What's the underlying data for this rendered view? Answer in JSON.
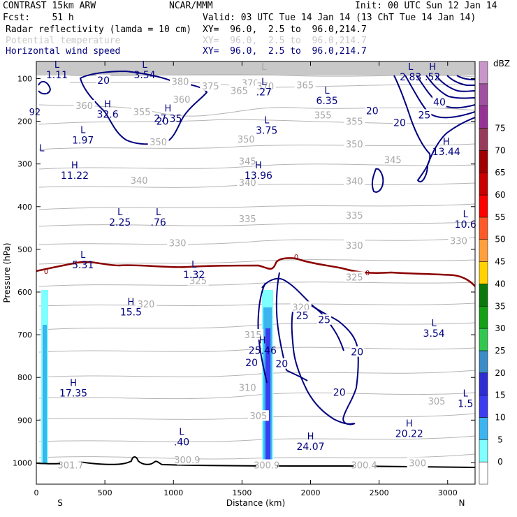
{
  "header": {
    "left_line1": "CONTRAST 15km ARW",
    "center_line1": "NCAR/MMM",
    "right_line1": "Init: 00 UTC Sun 12 Jan 14",
    "left_line2": "Fcst:    51 h",
    "right_line2": "Valid: 03 UTC Tue 14 Jan 14 (13 ChT Tue 14 Jan 14)",
    "fields": [
      {
        "name": "Radar reflectivity (lamda = 10 cm)",
        "xy": "XY=  96.0,  2.5 to  96.0,214.7",
        "color": "#000000"
      },
      {
        "name": "Potential temperature",
        "xy": "XY=  96.0,  2.5 to  96.0,214.7",
        "color": "#c8c8c8"
      },
      {
        "name": "Horizontal wind speed",
        "xy": "XY=  96.0,  2.5 to  96.0,214.7",
        "color": "#000080"
      }
    ]
  },
  "colors": {
    "theta": "#b4b4b4",
    "wind": "#000080",
    "freezing": "#8b0000",
    "terrain": "#000000"
  },
  "chart_data": {
    "type": "cross-section",
    "xlabel": "Distance (km)",
    "ylabel": "Pressure (hPa)",
    "xlim": [
      0,
      3200
    ],
    "ylim": [
      1050,
      60
    ],
    "x_ticks": [
      0,
      500,
      1000,
      1500,
      2000,
      2500,
      3000
    ],
    "y_ticks": [
      100,
      200,
      300,
      400,
      500,
      600,
      700,
      800,
      900,
      1000
    ],
    "endpoint_left": "S",
    "endpoint_right": "N",
    "colorbar": {
      "title": "dBZ",
      "levels": [
        0,
        5,
        10,
        15,
        20,
        25,
        30,
        35,
        40,
        45,
        50,
        55,
        60,
        65,
        70,
        75
      ],
      "colors": [
        "#ffffff",
        "#7fffff",
        "#3cb4f0",
        "#3c3cf0",
        "#2d2dd2",
        "#3c8cc8",
        "#32c850",
        "#14a014",
        "#0a780a",
        "#ffd200",
        "#ffa03c",
        "#ff5a28",
        "#ff0000",
        "#c80000",
        "#a00000",
        "#963c5a",
        "#963296",
        "#a050a0",
        "#c896c8"
      ]
    },
    "theta_labels": [
      {
        "x": 1050,
        "p": 107,
        "v": "380"
      },
      {
        "x": 1270,
        "p": 117,
        "v": "375"
      },
      {
        "x": 1560,
        "p": 110,
        "v": "370"
      },
      {
        "x": 1670,
        "p": 117,
        "v": "370"
      },
      {
        "x": 1480,
        "p": 128,
        "v": "365"
      },
      {
        "x": 1960,
        "p": 115,
        "v": "365"
      },
      {
        "x": 1060,
        "p": 148,
        "v": "360"
      },
      {
        "x": 350,
        "p": 163,
        "v": "360"
      },
      {
        "x": 770,
        "p": 178,
        "v": "355"
      },
      {
        "x": 2090,
        "p": 185,
        "v": "355"
      },
      {
        "x": 2320,
        "p": 200,
        "v": "355"
      },
      {
        "x": 1530,
        "p": 242,
        "v": "350"
      },
      {
        "x": 2320,
        "p": 253,
        "v": "350"
      },
      {
        "x": 890,
        "p": 248,
        "v": "350"
      },
      {
        "x": 1540,
        "p": 293,
        "v": "345"
      },
      {
        "x": 2600,
        "p": 290,
        "v": "345"
      },
      {
        "x": 750,
        "p": 338,
        "v": "340"
      },
      {
        "x": 1540,
        "p": 343,
        "v": "340"
      },
      {
        "x": 2320,
        "p": 340,
        "v": "340"
      },
      {
        "x": 1540,
        "p": 428,
        "v": "335"
      },
      {
        "x": 2320,
        "p": 420,
        "v": "335"
      },
      {
        "x": 1030,
        "p": 485,
        "v": "330"
      },
      {
        "x": 2320,
        "p": 490,
        "v": "330"
      },
      {
        "x": 3080,
        "p": 480,
        "v": "330"
      },
      {
        "x": 1180,
        "p": 573,
        "v": "325"
      },
      {
        "x": 2320,
        "p": 565,
        "v": "325"
      },
      {
        "x": 800,
        "p": 628,
        "v": "320"
      },
      {
        "x": 1930,
        "p": 635,
        "v": "320"
      },
      {
        "x": 1580,
        "p": 700,
        "v": "315"
      },
      {
        "x": 1540,
        "p": 823,
        "v": "310"
      },
      {
        "x": 2920,
        "p": 855,
        "v": "305"
      },
      {
        "x": 1620,
        "p": 890,
        "v": "305"
      },
      {
        "x": 1100,
        "p": 993,
        "v": "300.9"
      },
      {
        "x": 1680,
        "p": 1005,
        "v": "300.9"
      },
      {
        "x": 2390,
        "p": 1005,
        "v": "300.4"
      },
      {
        "x": 2780,
        "p": 1000,
        "v": "300"
      },
      {
        "x": 250,
        "p": 1005,
        "v": "301.7"
      }
    ],
    "wind_labels": [
      {
        "x": 490,
        "p": 104,
        "v": "20"
      },
      {
        "x": 920,
        "p": 200,
        "v": "20"
      },
      {
        "x": 2450,
        "p": 175,
        "v": "20"
      },
      {
        "x": 2650,
        "p": 203,
        "v": "20"
      },
      {
        "x": 2940,
        "p": 155,
        "v": "40"
      },
      {
        "x": 2830,
        "p": 185,
        "v": "25"
      },
      {
        "x": 1940,
        "p": 655,
        "v": "25"
      },
      {
        "x": 2100,
        "p": 665,
        "v": "25"
      },
      {
        "x": 2340,
        "p": 740,
        "v": "20"
      },
      {
        "x": 2210,
        "p": 835,
        "v": "20"
      },
      {
        "x": 1570,
        "p": 765,
        "v": "20"
      },
      {
        "x": 1790,
        "p": 768,
        "v": "20"
      }
    ],
    "extrema": [
      {
        "kind": "L",
        "x": 150,
        "p": 75,
        "v": "1.11",
        "color": "navy"
      },
      {
        "kind": "L",
        "x": 790,
        "p": 75,
        "v": "3.54",
        "color": "navy"
      },
      {
        "kind": "L",
        "x": 1660,
        "p": 80,
        "v": "",
        "color": "gray"
      },
      {
        "kind": "L",
        "x": 1660,
        "p": 115,
        "v": ".27",
        "color": "navy"
      },
      {
        "kind": "L",
        "x": 2730,
        "p": 80,
        "v": "2.83",
        "color": "navy"
      },
      {
        "kind": "H",
        "x": 2890,
        "p": 80,
        "v": ".52",
        "color": "navy"
      },
      {
        "kind": "H",
        "x": 520,
        "p": 167,
        "v": "32.6",
        "color": "navy"
      },
      {
        "kind": "H",
        "x": 960,
        "p": 177,
        "v": "27.35",
        "color": "navy"
      },
      {
        "kind": "L",
        "x": 2120,
        "p": 135,
        "v": "6.35",
        "color": "navy"
      },
      {
        "kind": "L",
        "x": 1680,
        "p": 205,
        "v": "3.75",
        "color": "navy"
      },
      {
        "kind": "L",
        "x": 340,
        "p": 228,
        "v": "1.97",
        "color": "navy"
      },
      {
        "kind": "H",
        "x": 2990,
        "p": 255,
        "v": "13.44",
        "color": "navy"
      },
      {
        "kind": "H",
        "x": 280,
        "p": 310,
        "v": "11.22",
        "color": "navy"
      },
      {
        "kind": "H",
        "x": 1620,
        "p": 310,
        "v": "13.96",
        "color": "navy"
      },
      {
        "kind": "L",
        "x": 610,
        "p": 420,
        "v": "2.25",
        "color": "navy"
      },
      {
        "kind": "L",
        "x": 890,
        "p": 420,
        "v": ".76",
        "color": "navy"
      },
      {
        "kind": "L",
        "x": 3130,
        "p": 425,
        "v": "10.6",
        "color": "navy"
      },
      {
        "kind": "L",
        "x": 340,
        "p": 520,
        "v": "5.31",
        "color": "navy"
      },
      {
        "kind": "L",
        "x": 1150,
        "p": 543,
        "v": "1.32",
        "color": "navy"
      },
      {
        "kind": "H",
        "x": 690,
        "p": 630,
        "v": "15.5",
        "color": "navy"
      },
      {
        "kind": "L",
        "x": 2900,
        "p": 680,
        "v": "3.54",
        "color": "navy"
      },
      {
        "kind": "H",
        "x": 1650,
        "p": 720,
        "v": "25.46",
        "color": "navy"
      },
      {
        "kind": "H",
        "x": 270,
        "p": 820,
        "v": "17.35",
        "color": "navy"
      },
      {
        "kind": "L",
        "x": 3130,
        "p": 845,
        "v": "1.5",
        "color": "navy"
      },
      {
        "kind": "H",
        "x": 2720,
        "p": 915,
        "v": "20.22",
        "color": "navy"
      },
      {
        "kind": "L",
        "x": 1060,
        "p": 935,
        "v": ".40",
        "color": "navy"
      },
      {
        "kind": "H",
        "x": 2000,
        "p": 945,
        "v": "24.07",
        "color": "navy"
      },
      {
        "kind": "L",
        "x": 40,
        "p": 270,
        "v": "",
        "color": "navy"
      }
    ],
    "edge_labels": [
      {
        "x": 40,
        "p": 268,
        "v": "92",
        "color": "navy"
      }
    ],
    "freezing_label": "0",
    "reflectivity_columns": [
      {
        "x": 60,
        "ptop": 590,
        "pbot": 1010,
        "dbz": 10
      },
      {
        "x": 1680,
        "ptop": 590,
        "pbot": 1010,
        "dbz": 15
      }
    ]
  }
}
